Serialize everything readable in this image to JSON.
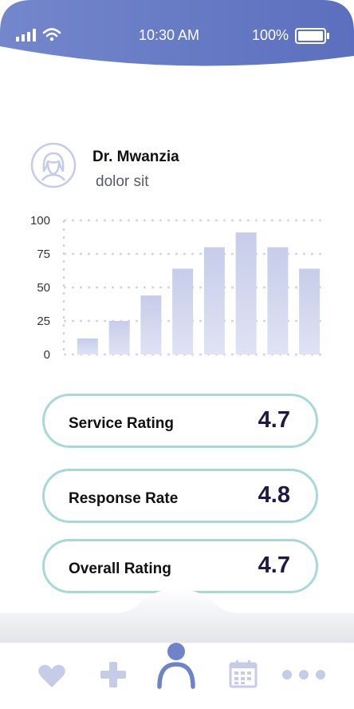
{
  "status_bar": {
    "time": "10:30 AM",
    "battery": "100%"
  },
  "profile": {
    "name": "Dr. Mwanzia",
    "subtitle": "dolor sit"
  },
  "chart_data": {
    "type": "bar",
    "categories": [
      "",
      "",
      "",
      "",
      "",
      "",
      "",
      ""
    ],
    "values": [
      12,
      25,
      44,
      64,
      80,
      91,
      80,
      64
    ],
    "ylim": [
      0,
      100
    ],
    "yticks": [
      0,
      25,
      50,
      75,
      100
    ],
    "grid": true,
    "colors": {
      "bar_top": "#c7cdea",
      "bar_bottom": "#dfe3f4",
      "grid": "#d4d6e0",
      "tick_text": "#333333"
    }
  },
  "ratings": [
    {
      "label": "Service Rating",
      "value": "4.7"
    },
    {
      "label": "Response Rate",
      "value": "4.8"
    },
    {
      "label": "Overall Rating",
      "value": "4.7"
    }
  ],
  "nav": {
    "items": [
      {
        "icon": "heart-icon",
        "active": false
      },
      {
        "icon": "plus-icon",
        "active": false
      },
      {
        "icon": "user-icon",
        "active": true
      },
      {
        "icon": "calendar-icon",
        "active": false
      },
      {
        "icon": "more-icon",
        "active": false
      }
    ]
  },
  "colors": {
    "header": "#6f83c8",
    "accent": "#6f83c8",
    "icon_muted": "#c6cbe8",
    "card_border": "#a7d9d9"
  }
}
